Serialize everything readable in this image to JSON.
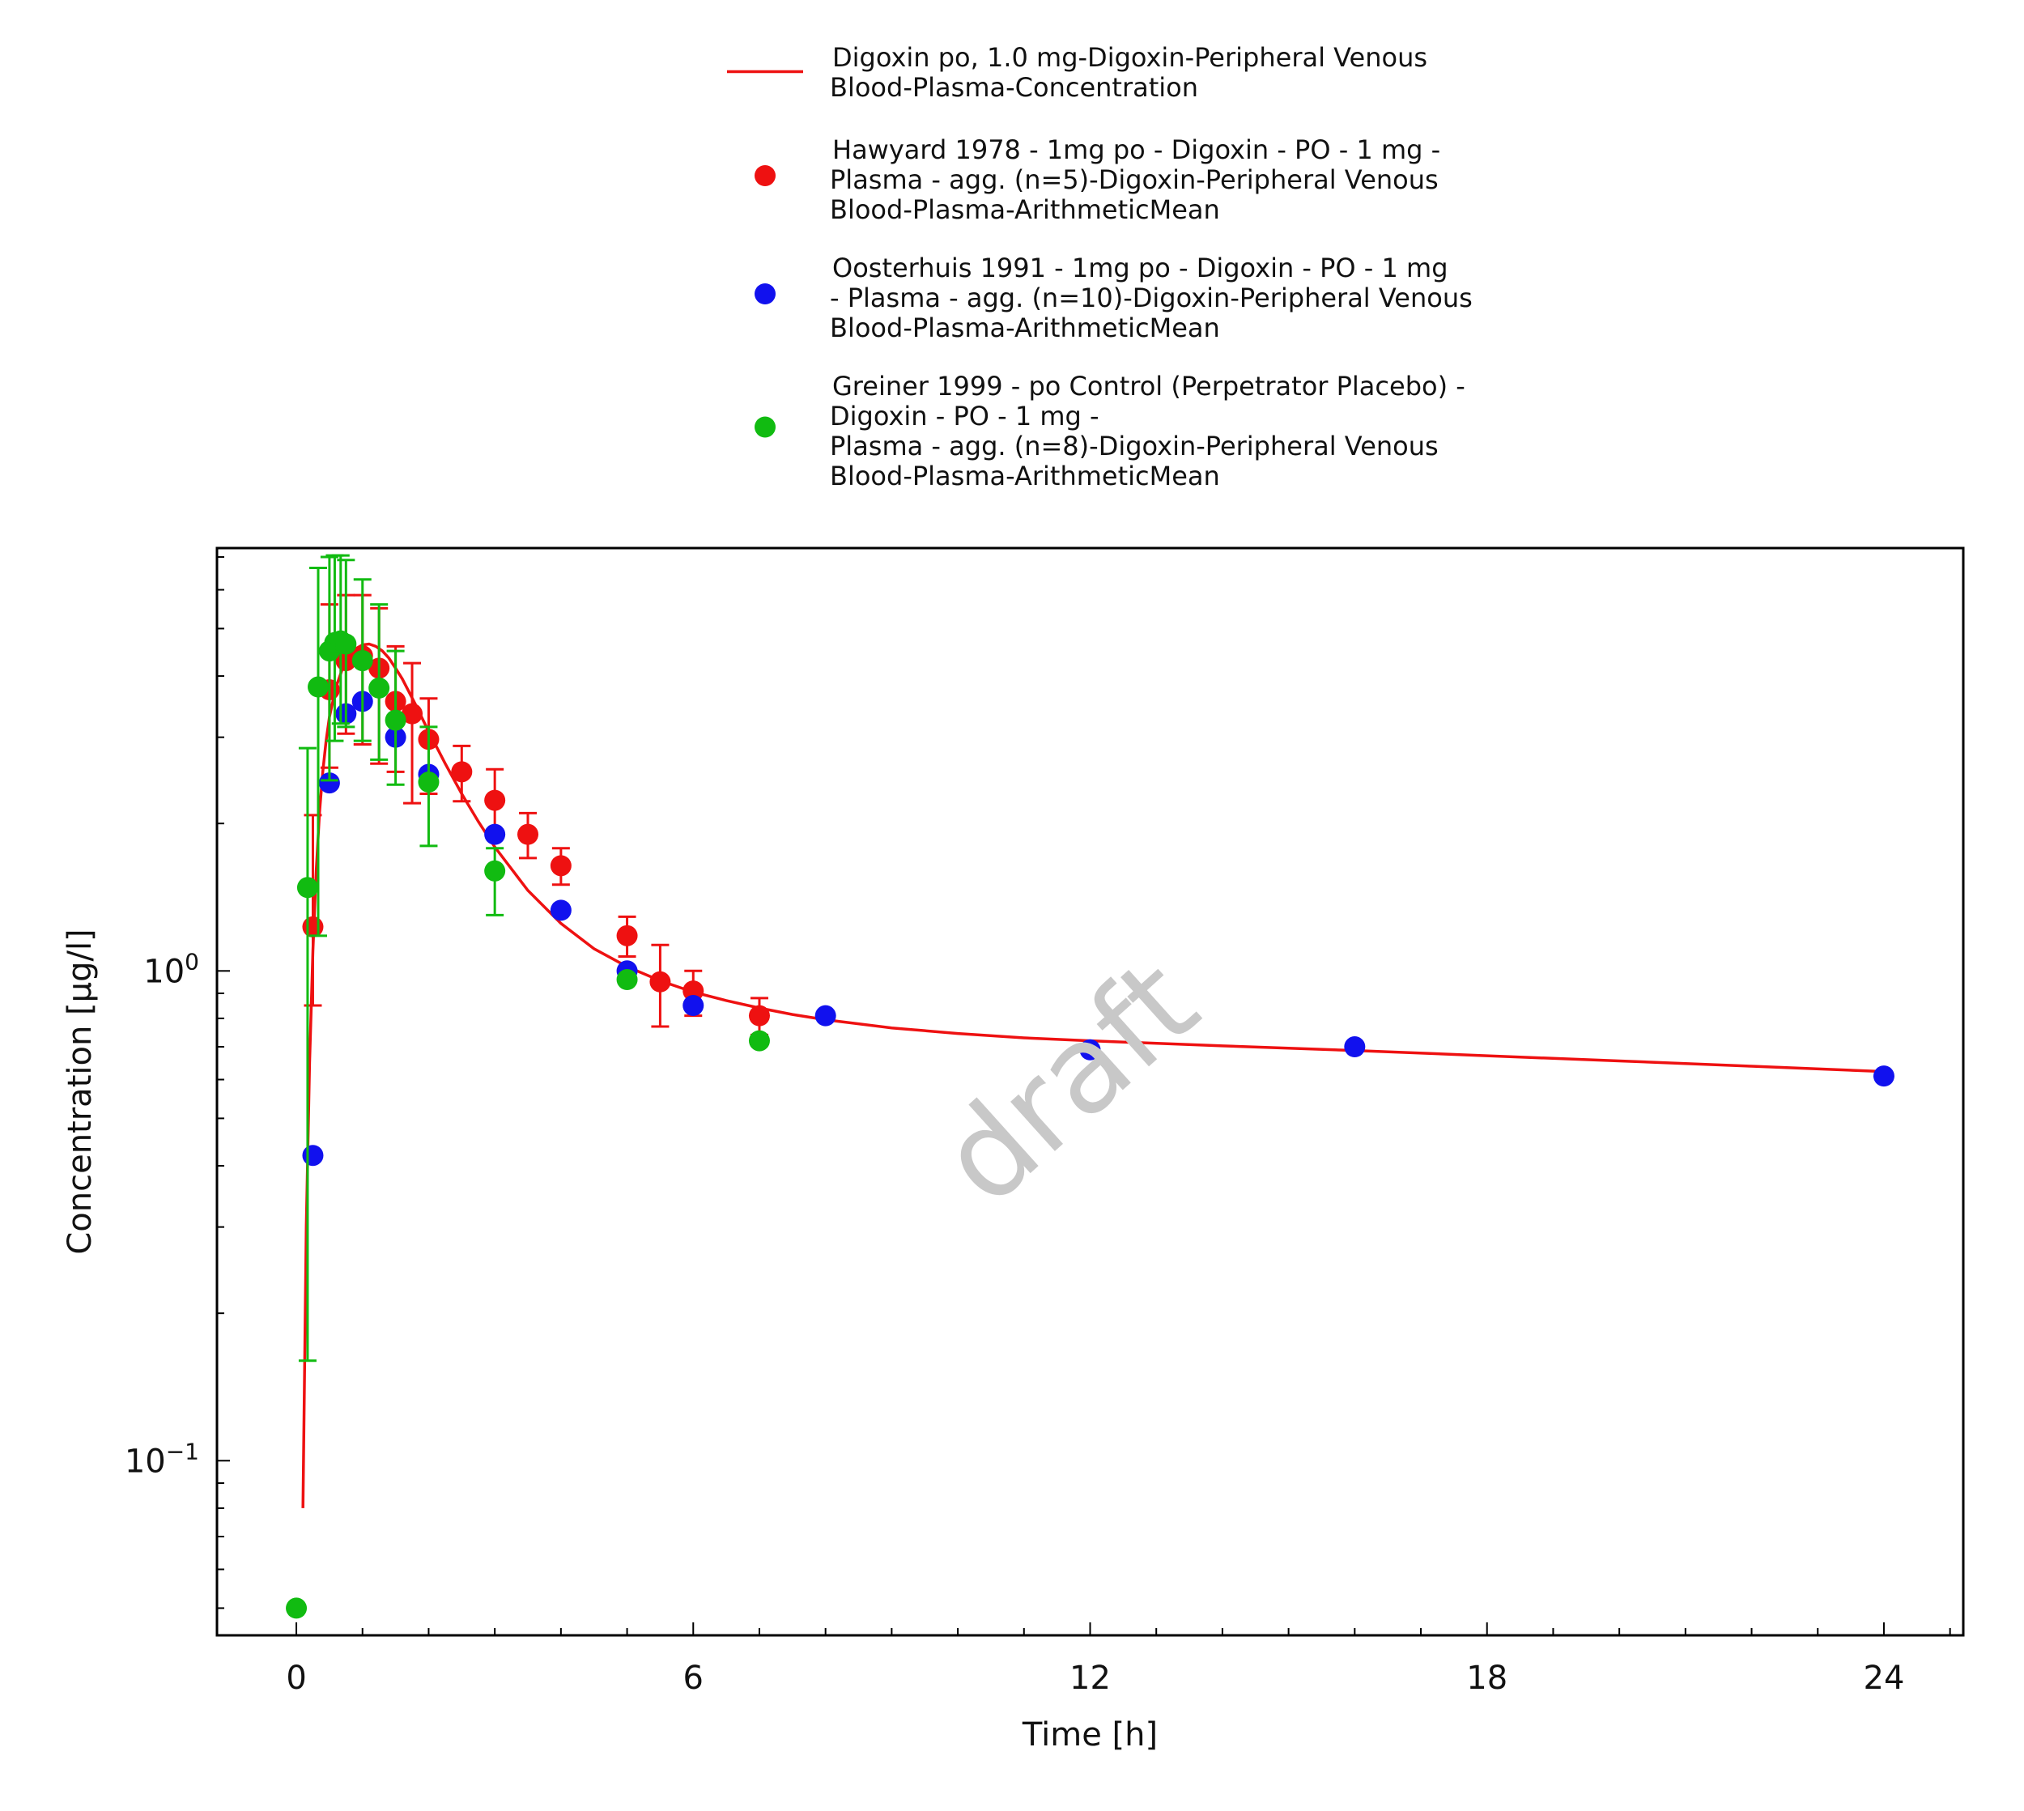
{
  "chart_data": {
    "type": "scatter",
    "xlabel": "Time [h]",
    "ylabel": "Concentration [µg/l]",
    "x_ticks": [
      0,
      6,
      12,
      18,
      24
    ],
    "x_tick_labels": [
      "0",
      "6",
      "12",
      "18",
      "24"
    ],
    "xlim": [
      -1.2,
      25.2
    ],
    "y_scale": "log",
    "ylim": [
      0.044,
      7.3
    ],
    "y_ticks": [
      0.1,
      1
    ],
    "y_tick_labels": [
      {
        "base": "10",
        "exp": "−1"
      },
      {
        "base": "10",
        "exp": "0"
      }
    ],
    "grid": false,
    "legend_position": "top-center",
    "watermark": "draft",
    "series": [
      {
        "name": "Digoxin po, 1.0 mg-Digoxin-Peripheral Venous Blood-Plasma-Concentration",
        "legend_lines": [
          "Digoxin po, 1.0 mg-Digoxin-Peripheral Venous",
          "Blood-Plasma-Concentration"
        ],
        "type": "line",
        "color": "#ee1111",
        "x": [
          0.1,
          0.15,
          0.2,
          0.25,
          0.3,
          0.35,
          0.4,
          0.45,
          0.5,
          0.6,
          0.7,
          0.8,
          0.9,
          1.0,
          1.1,
          1.2,
          1.3,
          1.4,
          1.5,
          1.6,
          1.7,
          1.8,
          2.0,
          2.25,
          2.5,
          2.75,
          3.0,
          3.5,
          4.0,
          4.5,
          5.0,
          5.5,
          6.0,
          6.5,
          7.0,
          7.5,
          8.0,
          9.0,
          10.0,
          11.0,
          12.0,
          14.0,
          16.0,
          18.0,
          20.0,
          22.0,
          24.0
        ],
        "y": [
          0.08,
          0.3,
          0.65,
          1.1,
          1.6,
          2.1,
          2.55,
          2.95,
          3.3,
          3.8,
          4.15,
          4.4,
          4.55,
          4.63,
          4.65,
          4.6,
          4.5,
          4.35,
          4.15,
          3.95,
          3.72,
          3.5,
          3.08,
          2.65,
          2.3,
          2.02,
          1.79,
          1.46,
          1.25,
          1.11,
          1.02,
          0.955,
          0.905,
          0.87,
          0.84,
          0.815,
          0.795,
          0.765,
          0.745,
          0.73,
          0.72,
          0.703,
          0.688,
          0.671,
          0.655,
          0.639,
          0.623
        ]
      },
      {
        "name": "Hawyard 1978 - 1mg po - Digoxin - PO - 1 mg - Plasma - agg. (n=5)-Digoxin-Peripheral Venous Blood-Plasma-ArithmeticMean",
        "legend_lines": [
          "Hawyard 1978 - 1mg po - Digoxin - PO - 1 mg -",
          "Plasma - agg. (n=5)-Digoxin-Peripheral Venous",
          "Blood-Plasma-ArithmeticMean"
        ],
        "type": "scatter",
        "color": "#ee1111",
        "x": [
          0.25,
          0.5,
          0.75,
          1.0,
          1.25,
          1.5,
          1.75,
          2.0,
          2.5,
          3.0,
          3.5,
          4.0,
          5.0,
          5.5,
          6.0,
          7.0
        ],
        "y": [
          1.23,
          3.75,
          4.3,
          4.4,
          4.15,
          3.55,
          3.35,
          2.97,
          2.55,
          2.23,
          1.9,
          1.64,
          1.18,
          0.95,
          0.91,
          0.81
        ],
        "err_lo": [
          0.85,
          2.6,
          3.05,
          2.9,
          2.65,
          2.55,
          2.2,
          2.3,
          2.22,
          1.94,
          1.7,
          1.5,
          1.07,
          0.77,
          0.81,
          0.74
        ],
        "err_hi": [
          2.08,
          5.6,
          5.85,
          5.85,
          5.5,
          4.6,
          4.25,
          3.6,
          2.88,
          2.58,
          2.1,
          1.78,
          1.29,
          1.13,
          1.0,
          0.88
        ]
      },
      {
        "name": "Oosterhuis 1991 - 1mg po - Digoxin - PO - 1 mg - Plasma - agg. (n=10)-Digoxin-Peripheral Venous Blood-Plasma-ArithmeticMean",
        "legend_lines": [
          "Oosterhuis 1991 - 1mg po - Digoxin - PO - 1 mg",
          "- Plasma - agg. (n=10)-Digoxin-Peripheral Venous",
          "Blood-Plasma-ArithmeticMean"
        ],
        "type": "scatter",
        "color": "#1111ee",
        "x": [
          0.25,
          0.5,
          0.75,
          1.0,
          1.5,
          2.0,
          3.0,
          4.0,
          5.0,
          6.0,
          8.0,
          12.0,
          16.0,
          24.0
        ],
        "y": [
          0.42,
          2.42,
          3.35,
          3.55,
          3.0,
          2.52,
          1.9,
          1.33,
          1.0,
          0.85,
          0.81,
          0.69,
          0.7,
          0.61
        ]
      },
      {
        "name": "Greiner 1999 - po Control (Perpetrator Placebo) - Digoxin - PO - 1 mg - Plasma - agg. (n=8)-Digoxin-Peripheral Venous Blood-Plasma-ArithmeticMean",
        "legend_lines": [
          "Greiner 1999 - po Control (Perpetrator Placebo) -",
          "Digoxin - PO - 1 mg -",
          "Plasma - agg. (n=8)-Digoxin-Peripheral Venous",
          "Blood-Plasma-ArithmeticMean"
        ],
        "type": "scatter",
        "color": "#11bb11",
        "x": [
          0.0,
          0.17,
          0.33,
          0.5,
          0.58,
          0.67,
          0.75,
          1.0,
          1.25,
          1.5,
          2.0,
          3.0,
          5.0,
          7.0
        ],
        "y": [
          0.05,
          1.48,
          3.8,
          4.5,
          4.68,
          4.72,
          4.65,
          4.3,
          3.78,
          3.25,
          2.43,
          1.6,
          0.96,
          0.72
        ],
        "err_lo": [
          null,
          0.16,
          1.18,
          2.45,
          2.95,
          3.2,
          3.15,
          2.95,
          2.7,
          2.4,
          1.8,
          1.3,
          null,
          null
        ],
        "err_hi": [
          null,
          2.85,
          6.65,
          7.0,
          7.05,
          7.05,
          6.9,
          6.3,
          5.6,
          4.5,
          3.15,
          1.78,
          null,
          null
        ]
      }
    ]
  }
}
